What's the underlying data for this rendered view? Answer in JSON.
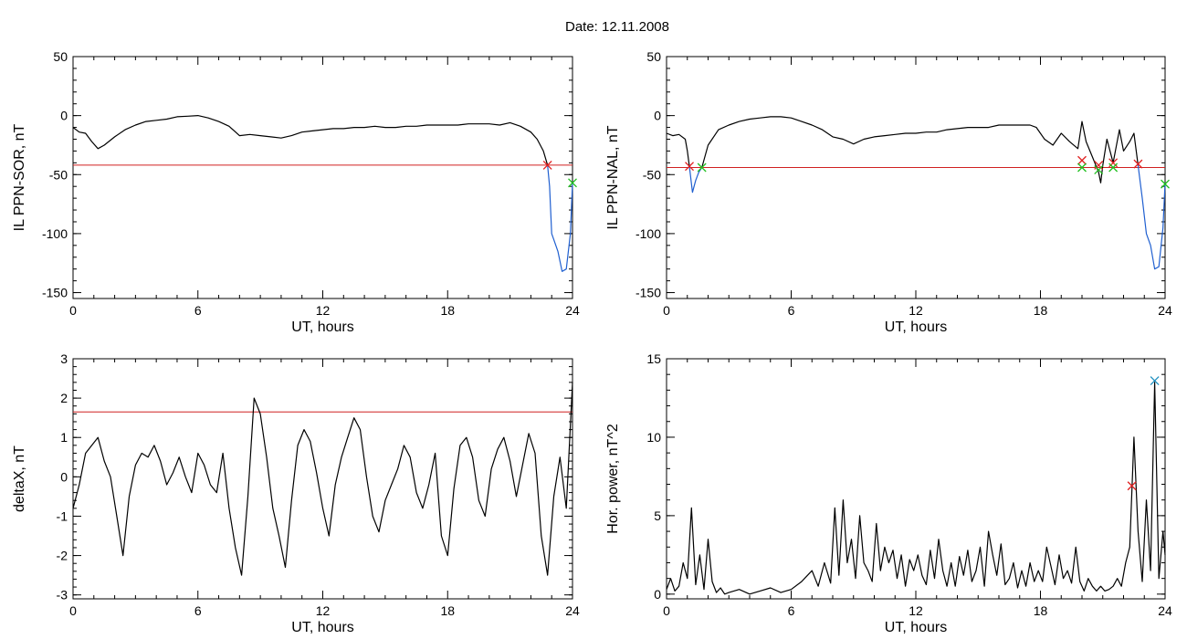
{
  "figure": {
    "title": "Date:  12.11.2008"
  },
  "chart_data": [
    {
      "id": "p1",
      "type": "line",
      "title": "",
      "xlabel": "UT, hours",
      "ylabel": "IL PPN-SOR, nT",
      "xlim": [
        0,
        24
      ],
      "ylim": [
        -155,
        50
      ],
      "xticks": [
        0,
        6,
        12,
        18,
        24
      ],
      "yticks": [
        50,
        0,
        -50,
        -100,
        -150
      ],
      "grid": false,
      "threshold": -42,
      "series": [
        {
          "color": "#000000",
          "x": [
            0,
            0.3,
            0.6,
            0.9,
            1.2,
            1.5,
            2,
            2.5,
            3,
            3.5,
            4,
            4.5,
            5,
            5.5,
            6,
            6.5,
            7,
            7.5,
            8,
            8.5,
            9,
            9.5,
            10,
            10.5,
            11,
            11.5,
            12,
            12.5,
            13,
            13.5,
            14,
            14.5,
            15,
            15.5,
            16,
            16.5,
            17,
            17.5,
            18,
            18.5,
            19,
            19.5,
            20,
            20.5,
            21,
            21.5,
            22,
            22.3,
            22.6,
            22.8
          ],
          "y": [
            -10,
            -14,
            -15,
            -22,
            -28,
            -25,
            -18,
            -12,
            -8,
            -5,
            -4,
            -3,
            -1,
            -0.5,
            0,
            -2,
            -5,
            -9,
            -17,
            -16,
            -17,
            -18,
            -19,
            -17,
            -14,
            -13,
            -12,
            -11,
            -11,
            -10,
            -10,
            -9,
            -10,
            -10,
            -9,
            -9,
            -8,
            -8,
            -8,
            -8,
            -7,
            -7,
            -7,
            -8,
            -6,
            -9,
            -14,
            -20,
            -30,
            -42
          ]
        },
        {
          "color": "#1f5fd0",
          "x": [
            22.8,
            22.9,
            23.0,
            23.1,
            23.3,
            23.5,
            23.7,
            23.9,
            24.0
          ],
          "y": [
            -42,
            -60,
            -100,
            -105,
            -115,
            -132,
            -130,
            -100,
            -57
          ]
        }
      ],
      "markers": [
        {
          "x": 22.8,
          "y": -42,
          "color": "#e02020"
        },
        {
          "x": 24.0,
          "y": -57,
          "color": "#20c020"
        }
      ]
    },
    {
      "id": "p2",
      "type": "line",
      "title": "",
      "xlabel": "UT, hours",
      "ylabel": "IL PPN-NAL, nT",
      "xlim": [
        0,
        24
      ],
      "ylim": [
        -155,
        50
      ],
      "xticks": [
        0,
        6,
        12,
        18,
        24
      ],
      "yticks": [
        50,
        0,
        -50,
        -100,
        -150
      ],
      "grid": false,
      "threshold": -44,
      "series": [
        {
          "color": "#000000",
          "x": [
            0,
            0.3,
            0.6,
            0.9,
            1.0,
            1.1
          ],
          "y": [
            -15,
            -17,
            -16,
            -20,
            -30,
            -43
          ]
        },
        {
          "color": "#1f5fd0",
          "x": [
            1.1,
            1.25,
            1.4,
            1.55,
            1.7
          ],
          "y": [
            -43,
            -65,
            -55,
            -48,
            -44
          ]
        },
        {
          "color": "#000000",
          "x": [
            1.7,
            2.0,
            2.5,
            3.0,
            3.5,
            4.0,
            4.5,
            5.0,
            5.5,
            6.0,
            6.5,
            7.0,
            7.5,
            8.0,
            8.5,
            9.0,
            9.5,
            10,
            10.5,
            11,
            11.5,
            12,
            12.5,
            13,
            13.5,
            14,
            14.5,
            15,
            15.5,
            16,
            16.5,
            17,
            17.5,
            17.8,
            18.2,
            18.6,
            19.0,
            19.4,
            19.8,
            20.0,
            20.2,
            20.5,
            20.8,
            20.9,
            21.0,
            21.2,
            21.5,
            21.8,
            22.0,
            22.3,
            22.5,
            22.7
          ],
          "y": [
            -44,
            -25,
            -12,
            -8,
            -5,
            -3,
            -2,
            -1,
            -1,
            -2,
            -5,
            -8,
            -12,
            -18,
            -20,
            -24,
            -20,
            -18,
            -17,
            -16,
            -15,
            -15,
            -14,
            -14,
            -12,
            -11,
            -10,
            -10,
            -10,
            -8,
            -8,
            -8,
            -8,
            -10,
            -20,
            -25,
            -15,
            -22,
            -28,
            -5,
            -22,
            -35,
            -48,
            -57,
            -42,
            -20,
            -40,
            -12,
            -30,
            -22,
            -15,
            -42
          ]
        },
        {
          "color": "#1f5fd0",
          "x": [
            22.7,
            22.9,
            23.1,
            23.3,
            23.5,
            23.7,
            23.9,
            24.0
          ],
          "y": [
            -42,
            -70,
            -100,
            -110,
            -130,
            -128,
            -95,
            -57
          ]
        }
      ],
      "markers": [
        {
          "x": 1.1,
          "y": -43,
          "color": "#e02020"
        },
        {
          "x": 1.7,
          "y": -44,
          "color": "#20c020"
        },
        {
          "x": 20.0,
          "y": -38,
          "color": "#e02020"
        },
        {
          "x": 20.0,
          "y": -44,
          "color": "#20c020"
        },
        {
          "x": 20.8,
          "y": -42,
          "color": "#e02020"
        },
        {
          "x": 20.8,
          "y": -46,
          "color": "#20c020"
        },
        {
          "x": 21.5,
          "y": -40,
          "color": "#e02020"
        },
        {
          "x": 21.5,
          "y": -44,
          "color": "#20c020"
        },
        {
          "x": 22.7,
          "y": -41,
          "color": "#e02020"
        },
        {
          "x": 24.0,
          "y": -58,
          "color": "#20c020"
        }
      ]
    },
    {
      "id": "p3",
      "type": "line",
      "title": "",
      "xlabel": "UT, hours",
      "ylabel": "deltaX, nT",
      "xlim": [
        0,
        24
      ],
      "ylim": [
        -3.1,
        3
      ],
      "xticks": [
        0,
        6,
        12,
        18,
        24
      ],
      "yticks": [
        3,
        2,
        1,
        0,
        -1,
        -2,
        -3
      ],
      "grid": false,
      "threshold": 1.65,
      "series": [
        {
          "color": "#000000",
          "x": [
            0,
            0.3,
            0.6,
            0.9,
            1.2,
            1.5,
            1.8,
            2.1,
            2.4,
            2.7,
            3.0,
            3.3,
            3.6,
            3.9,
            4.2,
            4.5,
            4.8,
            5.1,
            5.4,
            5.7,
            6.0,
            6.3,
            6.6,
            6.9,
            7.2,
            7.5,
            7.8,
            8.1,
            8.4,
            8.7,
            9.0,
            9.3,
            9.6,
            9.9,
            10.2,
            10.5,
            10.8,
            11.1,
            11.4,
            11.7,
            12.0,
            12.3,
            12.6,
            12.9,
            13.2,
            13.5,
            13.8,
            14.1,
            14.4,
            14.7,
            15.0,
            15.3,
            15.6,
            15.9,
            16.2,
            16.5,
            16.8,
            17.1,
            17.4,
            17.7,
            18.0,
            18.3,
            18.6,
            18.9,
            19.2,
            19.5,
            19.8,
            20.1,
            20.4,
            20.7,
            21.0,
            21.3,
            21.6,
            21.9,
            22.2,
            22.5,
            22.8,
            23.1,
            23.4,
            23.7,
            24.0
          ],
          "y": [
            -0.8,
            -0.2,
            0.6,
            0.8,
            1.0,
            0.4,
            0.0,
            -1.0,
            -2.0,
            -0.5,
            0.3,
            0.6,
            0.5,
            0.8,
            0.4,
            -0.2,
            0.1,
            0.5,
            0.0,
            -0.4,
            0.6,
            0.3,
            -0.2,
            -0.4,
            0.6,
            -0.8,
            -1.8,
            -2.5,
            -0.5,
            2.0,
            1.6,
            0.5,
            -0.8,
            -1.5,
            -2.3,
            -0.6,
            0.8,
            1.2,
            0.9,
            0.1,
            -0.8,
            -1.5,
            -0.2,
            0.5,
            1.0,
            1.5,
            1.2,
            0.0,
            -1.0,
            -1.4,
            -0.6,
            -0.2,
            0.2,
            0.8,
            0.5,
            -0.4,
            -0.8,
            -0.2,
            0.6,
            -1.5,
            -2.0,
            -0.3,
            0.8,
            1.0,
            0.5,
            -0.6,
            -1.0,
            0.2,
            0.7,
            1.0,
            0.4,
            -0.5,
            0.3,
            1.1,
            0.6,
            -1.5,
            -2.5,
            -0.5,
            0.5,
            -0.8,
            2.4
          ]
        }
      ],
      "markers": []
    },
    {
      "id": "p4",
      "type": "line",
      "title": "",
      "xlabel": "UT, hours",
      "ylabel": "Hor. power, nT^2",
      "xlim": [
        0,
        24
      ],
      "ylim": [
        -0.3,
        15
      ],
      "xticks": [
        0,
        6,
        12,
        18,
        24
      ],
      "yticks": [
        15,
        10,
        5,
        0
      ],
      "grid": false,
      "threshold": null,
      "series": [
        {
          "color": "#000000",
          "x": [
            0,
            0.2,
            0.4,
            0.6,
            0.8,
            1.0,
            1.2,
            1.4,
            1.6,
            1.8,
            2.0,
            2.2,
            2.4,
            2.6,
            2.8,
            3.0,
            3.5,
            4.0,
            4.5,
            5.0,
            5.5,
            6.0,
            6.5,
            7.0,
            7.3,
            7.6,
            7.9,
            8.1,
            8.3,
            8.5,
            8.7,
            8.9,
            9.1,
            9.3,
            9.5,
            9.7,
            9.9,
            10.1,
            10.3,
            10.5,
            10.7,
            10.9,
            11.1,
            11.3,
            11.5,
            11.7,
            11.9,
            12.1,
            12.3,
            12.5,
            12.7,
            12.9,
            13.1,
            13.3,
            13.5,
            13.7,
            13.9,
            14.1,
            14.3,
            14.5,
            14.7,
            14.9,
            15.1,
            15.3,
            15.5,
            15.7,
            15.9,
            16.1,
            16.3,
            16.5,
            16.7,
            16.9,
            17.1,
            17.3,
            17.5,
            17.7,
            17.9,
            18.1,
            18.3,
            18.5,
            18.7,
            18.9,
            19.1,
            19.3,
            19.5,
            19.7,
            19.9,
            20.1,
            20.3,
            20.5,
            20.7,
            20.9,
            21.1,
            21.3,
            21.5,
            21.7,
            21.9,
            22.1,
            22.3,
            22.5,
            22.7,
            22.9,
            23.1,
            23.3,
            23.5,
            23.7,
            23.9,
            24.0
          ],
          "y": [
            0.3,
            1.0,
            0.2,
            0.5,
            2.0,
            1.0,
            5.5,
            0.6,
            2.5,
            0.3,
            3.5,
            0.8,
            0.1,
            0.4,
            0.0,
            0.1,
            0.3,
            0.0,
            0.2,
            0.4,
            0.1,
            0.3,
            0.8,
            1.5,
            0.5,
            2.0,
            0.7,
            5.5,
            1.2,
            6.0,
            2.0,
            3.5,
            1.0,
            5.0,
            2.0,
            1.5,
            0.8,
            4.5,
            1.5,
            3.0,
            2.0,
            2.8,
            1.0,
            2.5,
            0.5,
            2.2,
            1.5,
            2.5,
            1.2,
            0.6,
            2.8,
            1.0,
            3.5,
            1.5,
            0.5,
            2.0,
            0.5,
            2.4,
            1.2,
            2.8,
            0.8,
            1.5,
            3.0,
            0.5,
            4.0,
            2.5,
            1.2,
            3.2,
            0.6,
            1.0,
            2.0,
            0.4,
            1.5,
            0.5,
            2.0,
            0.8,
            1.5,
            0.8,
            3.0,
            1.8,
            0.6,
            2.5,
            1.0,
            1.5,
            0.7,
            3.0,
            0.8,
            0.2,
            1.0,
            0.5,
            0.2,
            0.5,
            0.2,
            0.3,
            0.5,
            1.0,
            0.5,
            2.0,
            3.0,
            10.0,
            4.0,
            0.8,
            6.0,
            1.5,
            13.5,
            1.0,
            4.0,
            2.5
          ]
        }
      ],
      "markers": [
        {
          "x": 22.4,
          "y": 6.9,
          "color": "#e02020"
        },
        {
          "x": 23.5,
          "y": 13.6,
          "color": "#2090c0"
        }
      ]
    }
  ]
}
